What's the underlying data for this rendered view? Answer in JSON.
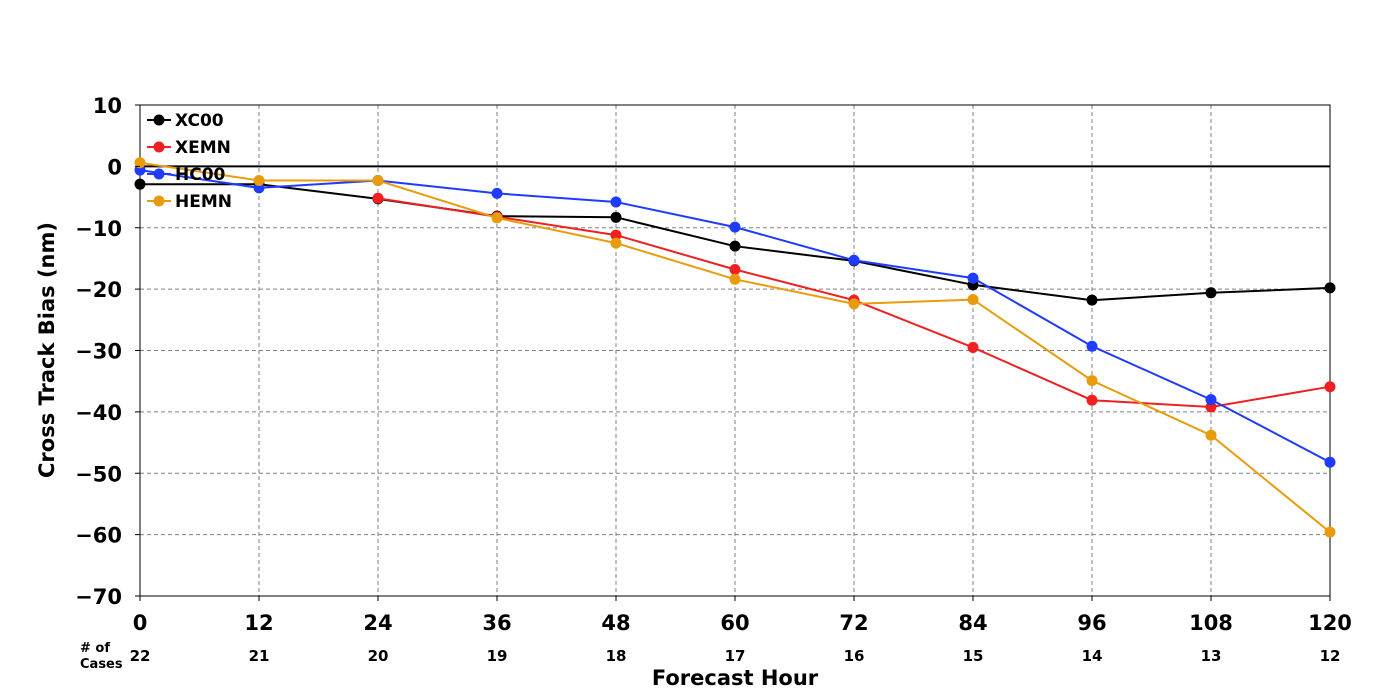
{
  "chart_data": {
    "type": "line",
    "title": "",
    "xlabel": "Forecast Hour",
    "ylabel": "Cross Track Bias (nm)",
    "x": [
      0,
      12,
      24,
      36,
      48,
      60,
      72,
      84,
      96,
      108,
      120
    ],
    "x_ticks": [
      "0",
      "12",
      "24",
      "36",
      "48",
      "60",
      "72",
      "84",
      "96",
      "108",
      "120"
    ],
    "xlim": [
      0,
      120
    ],
    "y_ticks": [
      "10",
      "0",
      "−10",
      "−20",
      "−30",
      "−40",
      "−50",
      "−60",
      "−70"
    ],
    "y_tick_values": [
      10,
      0,
      -10,
      -20,
      -30,
      -40,
      -50,
      -60,
      -70
    ],
    "ylim": [
      -70,
      10
    ],
    "grid": true,
    "zero_line": true,
    "legend_position": "top-left",
    "cases_title_line1": "# of",
    "cases_title_line2": "Cases",
    "cases": [
      "22",
      "21",
      "20",
      "19",
      "18",
      "17",
      "16",
      "15",
      "14",
      "13",
      "12"
    ],
    "series": [
      {
        "name": "XC00",
        "color": "#000000",
        "values": [
          -2.9,
          -2.9,
          -5.3,
          -8.1,
          -8.3,
          -13.0,
          -15.4,
          -19.3,
          -21.8,
          -20.6,
          -19.8
        ]
      },
      {
        "name": "XEMN",
        "color": "#f02020",
        "values": [
          null,
          null,
          -5.2,
          -8.2,
          -11.2,
          -16.8,
          -21.8,
          -29.5,
          -38.1,
          -39.2,
          -35.9
        ]
      },
      {
        "name": "HC00",
        "color": "#1f3bff",
        "values": [
          -0.6,
          -3.5,
          -2.3,
          -4.4,
          -5.8,
          -9.9,
          -15.3,
          -18.2,
          -29.3,
          -38.0,
          -48.2
        ]
      },
      {
        "name": "HEMN",
        "color": "#e89c0c",
        "values": [
          0.6,
          -2.3,
          -2.3,
          -8.4,
          -12.5,
          -18.4,
          -22.4,
          -21.7,
          -34.9,
          -43.8,
          -59.6
        ]
      }
    ]
  }
}
